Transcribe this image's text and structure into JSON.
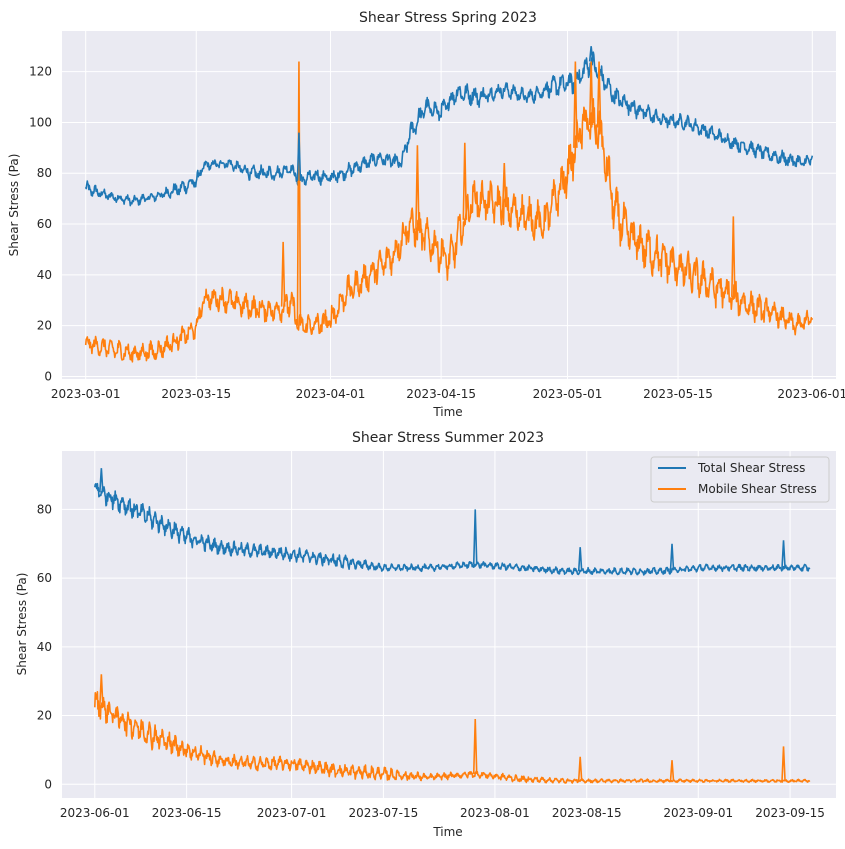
{
  "chart_data": [
    {
      "type": "line",
      "title": "Shear Stress Spring 2023",
      "xlabel": "Time",
      "ylabel": "Shear Stress (Pa)",
      "x_range": [
        "2023-02-26",
        "2023-06-04"
      ],
      "ylim": [
        -1,
        136
      ],
      "xticks": [
        "2023-03-01",
        "2023-03-15",
        "2023-04-01",
        "2023-04-15",
        "2023-05-01",
        "2023-05-15",
        "2023-06-01"
      ],
      "yticks": [
        0,
        20,
        40,
        60,
        80,
        100,
        120
      ],
      "grid": true,
      "legend": null,
      "series": [
        {
          "color": "#1f77b4",
          "x": [
            "2023-03-01",
            "2023-03-04",
            "2023-03-07",
            "2023-03-10",
            "2023-03-13",
            "2023-03-15",
            "2023-03-16",
            "2023-03-19",
            "2023-03-22",
            "2023-03-25",
            "2023-03-27",
            "2023-03-28",
            "2023-03-30",
            "2023-04-01",
            "2023-04-04",
            "2023-04-07",
            "2023-04-10",
            "2023-04-11",
            "2023-04-13",
            "2023-04-15",
            "2023-04-17",
            "2023-04-20",
            "2023-04-23",
            "2023-04-26",
            "2023-04-29",
            "2023-05-02",
            "2023-05-04",
            "2023-05-07",
            "2023-05-10",
            "2023-05-13",
            "2023-05-16",
            "2023-05-19",
            "2023-05-22",
            "2023-05-25",
            "2023-05-28",
            "2023-05-31",
            "2023-06-01"
          ],
          "values": [
            74,
            71,
            69,
            71,
            74,
            77,
            83,
            84,
            80,
            80,
            82,
            77,
            79,
            78,
            82,
            86,
            84,
            95,
            106,
            104,
            112,
            110,
            113,
            110,
            114,
            116,
            124,
            110,
            105,
            101,
            100,
            96,
            92,
            89,
            86,
            84,
            86
          ],
          "noise": [
            3,
            2,
            2,
            2,
            3,
            3,
            2,
            2,
            3,
            3,
            2,
            3,
            3,
            3,
            3,
            3,
            3,
            4,
            4,
            4,
            4,
            4,
            3,
            3,
            4,
            5,
            5,
            4,
            4,
            3,
            3,
            3,
            3,
            3,
            3,
            3,
            3
          ]
        },
        {
          "color": "#ff7f0e",
          "x": [
            "2023-03-01",
            "2023-03-04",
            "2023-03-07",
            "2023-03-10",
            "2023-03-13",
            "2023-03-15",
            "2023-03-16",
            "2023-03-19",
            "2023-03-22",
            "2023-03-25",
            "2023-03-27",
            "2023-03-28",
            "2023-03-30",
            "2023-04-01",
            "2023-04-03",
            "2023-04-06",
            "2023-04-09",
            "2023-04-11",
            "2023-04-14",
            "2023-04-16",
            "2023-04-19",
            "2023-04-22",
            "2023-04-25",
            "2023-04-28",
            "2023-05-01",
            "2023-05-03",
            "2023-05-05",
            "2023-05-07",
            "2023-05-09",
            "2023-05-12",
            "2023-05-15",
            "2023-05-18",
            "2023-05-21",
            "2023-05-24",
            "2023-05-27",
            "2023-05-30",
            "2023-06-01"
          ],
          "values": [
            13,
            11,
            9,
            10,
            15,
            19,
            31,
            30,
            27,
            26,
            29,
            20,
            20,
            22,
            33,
            40,
            48,
            60,
            52,
            45,
            70,
            68,
            64,
            60,
            80,
            100,
            98,
            65,
            55,
            48,
            43,
            38,
            33,
            28,
            25,
            20,
            23
          ],
          "noise": [
            3,
            4,
            4,
            4,
            4,
            4,
            4,
            5,
            5,
            5,
            6,
            5,
            5,
            6,
            6,
            6,
            7,
            7,
            8,
            8,
            8,
            8,
            8,
            8,
            9,
            10,
            10,
            10,
            9,
            9,
            8,
            8,
            7,
            6,
            5,
            4,
            4
          ]
        }
      ],
      "spikes": [
        {
          "series": 1,
          "x": "2023-03-28",
          "value": 124
        },
        {
          "series": 0,
          "x": "2023-03-28",
          "value": 96
        },
        {
          "series": 1,
          "x": "2023-03-26",
          "value": 53
        },
        {
          "series": 1,
          "x": "2023-04-12",
          "value": 91
        },
        {
          "series": 1,
          "x": "2023-04-18",
          "value": 92
        },
        {
          "series": 1,
          "x": "2023-04-23",
          "value": 84
        },
        {
          "series": 1,
          "x": "2023-05-02",
          "value": 124
        },
        {
          "series": 1,
          "x": "2023-05-04",
          "value": 124
        },
        {
          "series": 1,
          "x": "2023-05-05",
          "value": 124
        },
        {
          "series": 0,
          "x": "2023-05-04",
          "value": 130
        },
        {
          "series": 1,
          "x": "2023-05-22",
          "value": 63
        }
      ]
    },
    {
      "type": "line",
      "title": "Shear Stress Summer 2023",
      "xlabel": "Time",
      "ylabel": "Shear Stress (Pa)",
      "x_range": [
        "2023-05-27",
        "2023-09-22"
      ],
      "ylim": [
        -4,
        97
      ],
      "xticks": [
        "2023-06-01",
        "2023-06-15",
        "2023-07-01",
        "2023-07-15",
        "2023-08-01",
        "2023-08-15",
        "2023-09-01",
        "2023-09-15"
      ],
      "yticks": [
        0,
        20,
        40,
        60,
        80
      ],
      "grid": true,
      "legend": "top-right",
      "series": [
        {
          "name": "Total Shear Stress",
          "color": "#1f77b4",
          "x": [
            "2023-06-01",
            "2023-06-05",
            "2023-06-10",
            "2023-06-15",
            "2023-06-20",
            "2023-06-25",
            "2023-07-01",
            "2023-07-08",
            "2023-07-15",
            "2023-07-22",
            "2023-07-29",
            "2023-08-05",
            "2023-08-12",
            "2023-08-19",
            "2023-08-26",
            "2023-09-02",
            "2023-09-09",
            "2023-09-16",
            "2023-09-18"
          ],
          "values": [
            86,
            82,
            77,
            72,
            69,
            68,
            67,
            65,
            63,
            63,
            64,
            63,
            62,
            62,
            62,
            63,
            63,
            63,
            63
          ],
          "noise": [
            3,
            3,
            3,
            3,
            2,
            2,
            2,
            2,
            1,
            1,
            1,
            1,
            1,
            1,
            1,
            1,
            1,
            1,
            1
          ]
        },
        {
          "name": "Mobile Shear Stress",
          "color": "#ff7f0e",
          "x": [
            "2023-06-01",
            "2023-06-05",
            "2023-06-10",
            "2023-06-15",
            "2023-06-20",
            "2023-06-25",
            "2023-07-01",
            "2023-07-08",
            "2023-07-15",
            "2023-07-22",
            "2023-07-29",
            "2023-08-05",
            "2023-08-12",
            "2023-08-19",
            "2023-08-26",
            "2023-09-02",
            "2023-09-09",
            "2023-09-16",
            "2023-09-18"
          ],
          "values": [
            24,
            19,
            14,
            10,
            7,
            6,
            6,
            4,
            3,
            2,
            3,
            1.5,
            1,
            1,
            1,
            1,
            1,
            1,
            1
          ],
          "noise": [
            4,
            4,
            4,
            3,
            2,
            2,
            2,
            2,
            2,
            1,
            1,
            1,
            0.6,
            0.5,
            0.5,
            0.4,
            0.4,
            0.4,
            0.4
          ]
        }
      ],
      "spikes": [
        {
          "series": 0,
          "x": "2023-06-02",
          "value": 92
        },
        {
          "series": 1,
          "x": "2023-06-02",
          "value": 32
        },
        {
          "series": 0,
          "x": "2023-07-29",
          "value": 80
        },
        {
          "series": 1,
          "x": "2023-07-29",
          "value": 19
        },
        {
          "series": 0,
          "x": "2023-08-14",
          "value": 69
        },
        {
          "series": 1,
          "x": "2023-08-14",
          "value": 8
        },
        {
          "series": 0,
          "x": "2023-08-28",
          "value": 70
        },
        {
          "series": 1,
          "x": "2023-08-28",
          "value": 7
        },
        {
          "series": 0,
          "x": "2023-09-14",
          "value": 71
        },
        {
          "series": 1,
          "x": "2023-09-14",
          "value": 11
        }
      ]
    }
  ]
}
